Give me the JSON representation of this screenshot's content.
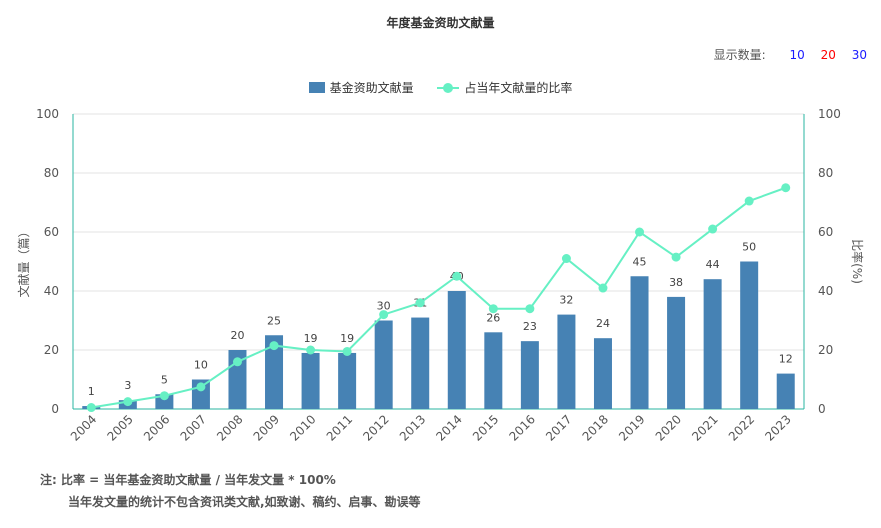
{
  "title": "年度基金资助文献量",
  "count_selector": {
    "label": "显示数量:",
    "options": [
      "10",
      "20",
      "30"
    ],
    "option_colors": [
      "#1a1aff",
      "#ff0000",
      "#1a1aff"
    ]
  },
  "colors": {
    "bar": "#4682b4",
    "line": "#66f0c4",
    "grid": "#e3e3e3",
    "axis": "#2ab5a1"
  },
  "chart_data": {
    "type": "bar",
    "categories": [
      "2004",
      "2005",
      "2006",
      "2007",
      "2008",
      "2009",
      "2010",
      "2011",
      "2012",
      "2013",
      "2014",
      "2015",
      "2016",
      "2017",
      "2018",
      "2019",
      "2020",
      "2021",
      "2022",
      "2023"
    ],
    "series": [
      {
        "name": "基金资助文献量",
        "type": "bar",
        "axis": "left",
        "values": [
          1,
          3,
          5,
          10,
          20,
          25,
          19,
          19,
          30,
          31,
          40,
          26,
          23,
          32,
          24,
          45,
          38,
          44,
          50,
          12
        ]
      },
      {
        "name": "占当年文献量的比率",
        "type": "line",
        "axis": "right",
        "values": [
          0.5,
          2.5,
          4.5,
          7.5,
          16,
          21.5,
          20,
          19.5,
          32,
          36,
          45,
          34,
          34,
          51,
          41,
          60,
          51.5,
          61,
          70.5,
          75
        ]
      }
    ],
    "ylabel": "文献量（篇）",
    "y2label": "比率(%)",
    "ylim": [
      0,
      100
    ],
    "y2lim": [
      0,
      100
    ],
    "yticks": [
      0,
      20,
      40,
      60,
      80,
      100
    ],
    "grid": true,
    "legend_position": "top-center",
    "notes": [
      "注:  比率 = 当年基金资助文献量 / 当年发文量 * 100%",
      "当年发文量的统计不包含资讯类文献,如致谢、稿约、启事、勘误等"
    ]
  }
}
